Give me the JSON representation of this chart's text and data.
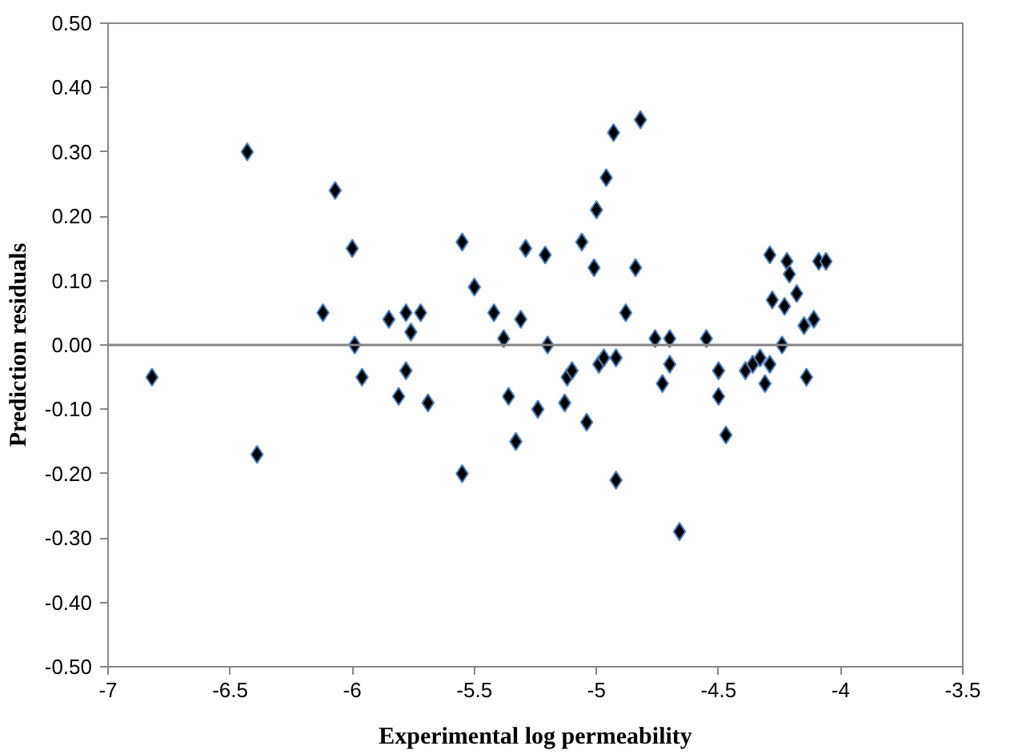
{
  "chart_data": {
    "type": "scatter",
    "xlabel": "Experimental log permeability",
    "ylabel": "Prediction residuals",
    "marker": "diamond",
    "grid": false,
    "xlim": [
      -7,
      -3.5
    ],
    "xticks": [
      -7,
      -6.5,
      -6,
      -5.5,
      -5,
      -4.5,
      -4,
      -3.5
    ],
    "ylim": [
      -0.5,
      0.5
    ],
    "yticks": [
      {
        "value": -0.5,
        "label": "-0.50"
      },
      {
        "value": -0.4,
        "label": "-0.40"
      },
      {
        "value": -0.3,
        "label": "-0.30"
      },
      {
        "value": -0.2,
        "label": "-0.20"
      },
      {
        "value": -0.1,
        "label": "-0.10"
      },
      {
        "value": 0,
        "label": "0.00"
      },
      {
        "value": 0.1,
        "label": "0.10"
      },
      {
        "value": 0.2,
        "label": "0.20"
      },
      {
        "value": 0.3,
        "label": "0.30"
      },
      {
        "value": 0.4,
        "label": "0.40"
      },
      {
        "value": 0.5,
        "label": "0.50"
      }
    ],
    "ref_lines": [
      {
        "axis": "y",
        "value": 0,
        "color": "#868686"
      }
    ],
    "series": [
      {
        "color": "#000000",
        "x": [
          -6.82,
          -6.43,
          -6.39,
          -6.12,
          -6.07,
          -6.0,
          -5.99,
          -5.96,
          -5.85,
          -5.81,
          -5.78,
          -5.78,
          -5.76,
          -5.72,
          -5.69,
          -5.55,
          -5.55,
          -5.5,
          -5.42,
          -5.38,
          -5.36,
          -5.33,
          -5.31,
          -5.29,
          -5.24,
          -5.21,
          -5.2,
          -5.13,
          -5.12,
          -5.1,
          -5.06,
          -5.04,
          -5.0,
          -5.01,
          -4.99,
          -4.96,
          -4.97,
          -4.93,
          -4.92,
          -4.92,
          -4.88,
          -4.84,
          -4.82,
          -4.76,
          -4.73,
          -4.7,
          -4.7,
          -4.66,
          -4.55,
          -4.5,
          -4.5,
          -4.47,
          -4.39,
          -4.36,
          -4.33,
          -4.31,
          -4.29,
          -4.29,
          -4.28,
          -4.24,
          -4.23,
          -4.22,
          -4.21,
          -4.18,
          -4.15,
          -4.14,
          -4.11,
          -4.09,
          -4.06
        ],
        "values": [
          -0.05,
          0.3,
          -0.17,
          0.05,
          0.24,
          0.15,
          0.0,
          -0.05,
          0.04,
          -0.08,
          0.05,
          -0.04,
          0.02,
          0.05,
          -0.09,
          0.16,
          -0.2,
          0.09,
          0.05,
          0.01,
          -0.08,
          -0.15,
          0.04,
          0.15,
          -0.1,
          0.14,
          0.0,
          -0.09,
          -0.05,
          -0.04,
          0.16,
          -0.12,
          0.21,
          0.12,
          -0.03,
          0.26,
          -0.02,
          0.33,
          -0.21,
          -0.02,
          0.05,
          0.12,
          0.35,
          0.01,
          -0.06,
          0.01,
          -0.03,
          -0.29,
          0.01,
          -0.04,
          -0.08,
          -0.14,
          -0.04,
          -0.03,
          -0.02,
          -0.06,
          -0.03,
          0.14,
          0.07,
          0.0,
          0.06,
          0.13,
          0.11,
          0.08,
          0.03,
          -0.05,
          0.04,
          0.13,
          0.13
        ]
      }
    ]
  }
}
